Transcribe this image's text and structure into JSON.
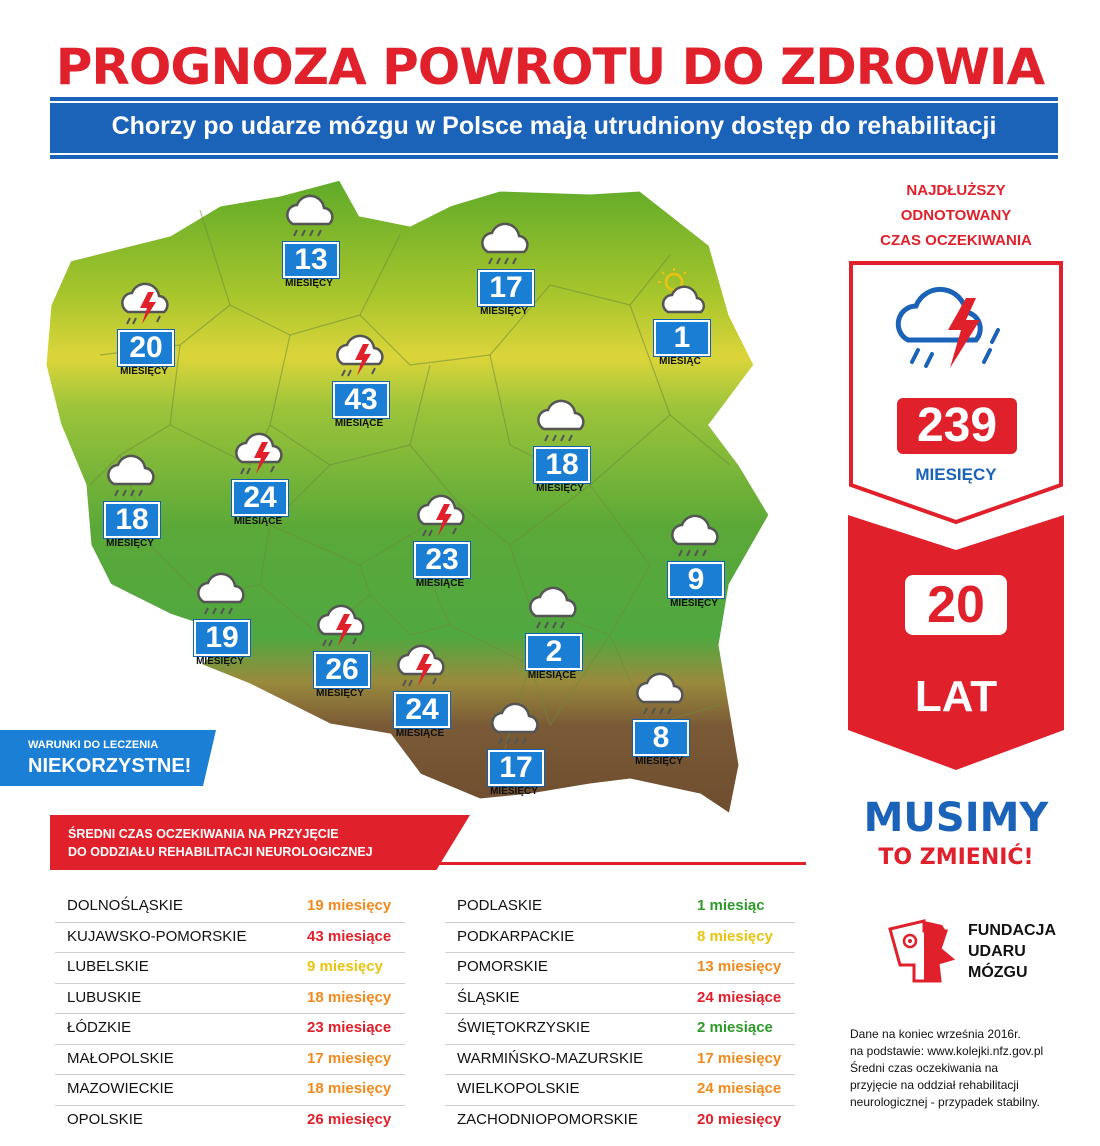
{
  "header": {
    "title": "PROGNOZA POWROTU DO ZDROWIA",
    "subtitle": "Chorzy po udarze mózgu w Polsce mają utrudniony dostęp do rehabilitacji"
  },
  "map": {
    "markers": [
      {
        "region": "zachodniopomorskie",
        "value": "20",
        "unit": "MIESIĘCY",
        "icon": "storm-cloud-icon"
      },
      {
        "region": "pomorskie",
        "value": "13",
        "unit": "MIESIĘCY",
        "icon": "rain-cloud-icon"
      },
      {
        "region": "warmińsko-mazurskie",
        "value": "17",
        "unit": "MIESIĘCY",
        "icon": "rain-cloud-icon"
      },
      {
        "region": "podlaskie",
        "value": "1",
        "unit": "MIESIĄC",
        "icon": "sun-cloud-icon"
      },
      {
        "region": "kujawsko-pomorskie",
        "value": "43",
        "unit": "MIESIĄCE",
        "icon": "storm-cloud-icon"
      },
      {
        "region": "mazowieckie",
        "value": "18",
        "unit": "MIESIĘCY",
        "icon": "rain-cloud-icon"
      },
      {
        "region": "wielkopolskie",
        "value": "24",
        "unit": "MIESIĄCE",
        "icon": "storm-cloud-icon"
      },
      {
        "region": "lubuskie",
        "value": "18",
        "unit": "MIESIĘCY",
        "icon": "rain-cloud-icon"
      },
      {
        "region": "łódzkie",
        "value": "23",
        "unit": "MIESIĄCE",
        "icon": "storm-cloud-icon"
      },
      {
        "region": "lubelskie",
        "value": "9",
        "unit": "MIESIĘCY",
        "icon": "rain-cloud-icon"
      },
      {
        "region": "dolnośląskie",
        "value": "19",
        "unit": "MIESIĘCY",
        "icon": "rain-cloud-icon"
      },
      {
        "region": "opolskie",
        "value": "26",
        "unit": "MIESIĘCY",
        "icon": "storm-cloud-icon"
      },
      {
        "region": "świętokrzyskie",
        "value": "2",
        "unit": "MIESIĄCE",
        "icon": "rain-cloud-icon"
      },
      {
        "region": "śląskie",
        "value": "24",
        "unit": "MIESIĄCE",
        "icon": "storm-cloud-icon"
      },
      {
        "region": "małopolskie",
        "value": "17",
        "unit": "MIESIĘCY",
        "icon": "rain-cloud-icon"
      },
      {
        "region": "podkarpackie",
        "value": "8",
        "unit": "MIESIĘCY",
        "icon": "rain-cloud-icon"
      }
    ],
    "badge": {
      "line1": "WARUNKI DO LECZENIA",
      "line2": "NIEKORZYSTNE!"
    }
  },
  "longest": {
    "heading": [
      "NAJDŁUŻSZY",
      "ODNOTOWANY",
      "CZAS OCZEKIWANIA"
    ],
    "value": "239",
    "unit": "MIESIĘCY",
    "years_value": "20",
    "years_unit": "LAT"
  },
  "cta": {
    "line1": "MUSIMY",
    "line2": "TO ZMIENIĆ!"
  },
  "logo": {
    "lines": [
      "FUNDACJA",
      "UDARU",
      "MÓZGU"
    ]
  },
  "notes": [
    "Dane na koniec września 2016r.",
    "na podstawie: www.kolejki.nfz.gov.pl",
    "Średni czas oczekiwania na",
    "przyjęcie na oddział rehabilitacji",
    "neurologicznej - przypadek stabilny."
  ],
  "table": {
    "heading": [
      "ŚREDNI CZAS OCZEKIWANIA NA PRZYJĘCIE",
      "DO ODDZIAŁU REHABILITACJI NEUROLOGICZNEJ"
    ],
    "left": [
      {
        "name": "DOLNOŚLĄSKIE",
        "value": "19 miesięcy",
        "color": "#f08a1c"
      },
      {
        "name": "KUJAWSKO-POMORSKIE",
        "value": "43 miesiące",
        "color": "#e0202a"
      },
      {
        "name": "LUBELSKIE",
        "value": "9 miesięcy",
        "color": "#e8c410"
      },
      {
        "name": "LUBUSKIE",
        "value": "18 miesięcy",
        "color": "#f08a1c"
      },
      {
        "name": "ŁÓDZKIE",
        "value": "23 miesiące",
        "color": "#e0202a"
      },
      {
        "name": "MAŁOPOLSKIE",
        "value": "17 miesięcy",
        "color": "#f08a1c"
      },
      {
        "name": "MAZOWIECKIE",
        "value": "18 miesięcy",
        "color": "#f08a1c"
      },
      {
        "name": "OPOLSKIE",
        "value": "26 miesięcy",
        "color": "#e0202a"
      }
    ],
    "right": [
      {
        "name": "PODLASKIE",
        "value": "1 miesiąc",
        "color": "#2e9a2a"
      },
      {
        "name": "PODKARPACKIE",
        "value": "8 miesięcy",
        "color": "#e8c410"
      },
      {
        "name": "POMORSKIE",
        "value": "13 miesięcy",
        "color": "#f08a1c"
      },
      {
        "name": "ŚLĄSKIE",
        "value": "24 miesiące",
        "color": "#e0202a"
      },
      {
        "name": "ŚWIĘTOKRZYSKIE",
        "value": "2 miesiące",
        "color": "#2e9a2a"
      },
      {
        "name": "WARMIŃSKO-MAZURSKIE",
        "value": "17 miesięcy",
        "color": "#f08a1c"
      },
      {
        "name": "WIELKOPOLSKIE",
        "value": "24 miesiące",
        "color": "#f08a1c"
      },
      {
        "name": "ZACHODNIOPOMORSKIE",
        "value": "20 miesięcy",
        "color": "#e0202a"
      }
    ]
  },
  "colors": {
    "red": "#e0202a",
    "blue": "#1b63b8",
    "tile_blue": "#1a7fd4"
  }
}
